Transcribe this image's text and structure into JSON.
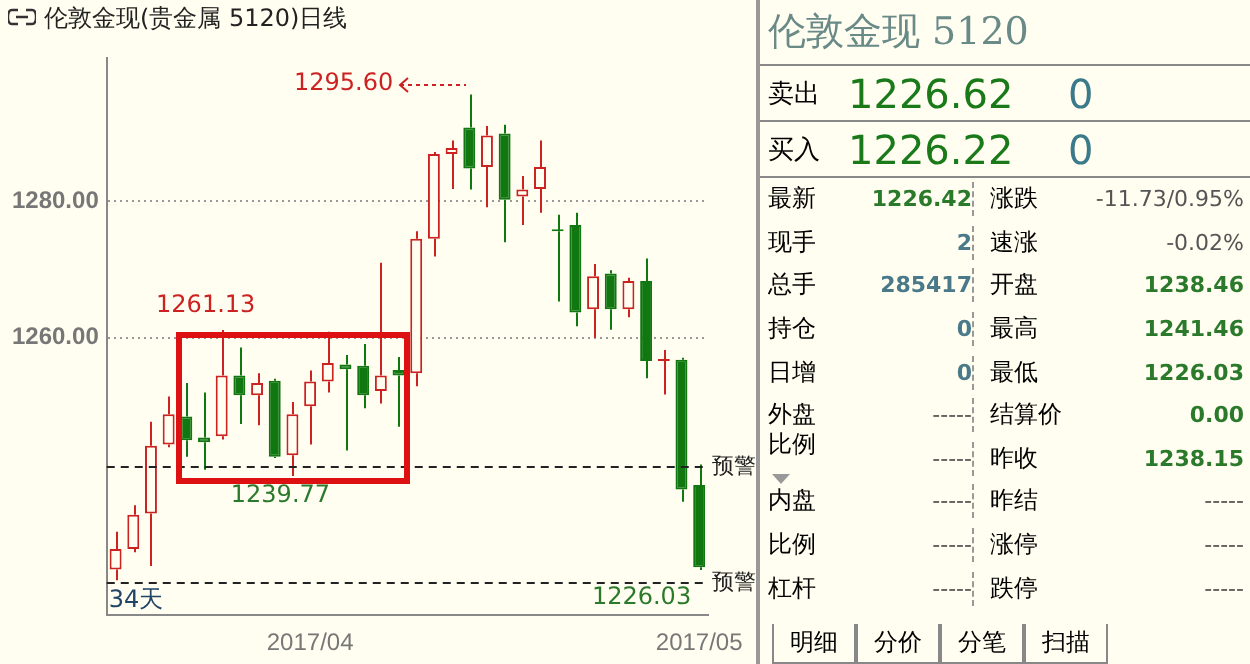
{
  "chart_data": [
    {
      "type": "candlestick",
      "title": "伦敦金现(贵金属 5120)日线",
      "categories": [
        null,
        null,
        null,
        null,
        null,
        null,
        null,
        null,
        null,
        null,
        null,
        "2017/04",
        null,
        null,
        null,
        null,
        null,
        null,
        null,
        null,
        null,
        null,
        null,
        null,
        null,
        null,
        null,
        null,
        null,
        null,
        null,
        null,
        null,
        "2017/05"
      ],
      "ohlc": [
        [
          1226.1,
          1231.6,
          1224.5,
          1229.1
        ],
        [
          1229.1,
          1235.5,
          1228.6,
          1234.1
        ],
        [
          1234.3,
          1247.7,
          1226.6,
          1244.2
        ],
        [
          1244.4,
          1251.4,
          1244.0,
          1248.8
        ],
        [
          1248.5,
          1253.4,
          1242.6,
          1245.0
        ],
        [
          1245.4,
          1252.0,
          1240.7,
          1244.7
        ],
        [
          1245.6,
          1261.13,
          1245.1,
          1254.5
        ],
        [
          1254.5,
          1258.6,
          1247.4,
          1251.6
        ],
        [
          1251.6,
          1254.8,
          1247.2,
          1253.4
        ],
        [
          1253.7,
          1254.0,
          1242.4,
          1242.6
        ],
        [
          1242.8,
          1250.6,
          1239.77,
          1248.8
        ],
        [
          1250.0,
          1255.2,
          1244.4,
          1253.6
        ],
        [
          1253.6,
          1260.9,
          1252.0,
          1256.3
        ],
        [
          1256.1,
          1257.5,
          1243.5,
          1255.4
        ],
        [
          1255.9,
          1259.1,
          1249.7,
          1251.6
        ],
        [
          1252.2,
          1271.0,
          1250.4,
          1254.5
        ],
        [
          1255.3,
          1257.2,
          1247.0,
          1254.5
        ],
        [
          1254.8,
          1275.6,
          1252.9,
          1274.5
        ],
        [
          1274.5,
          1287.2,
          1271.9,
          1286.9
        ],
        [
          1286.9,
          1288.9,
          1281.8,
          1287.8
        ],
        [
          1290.8,
          1295.6,
          1281.7,
          1284.8
        ],
        [
          1285.0,
          1291.0,
          1279.1,
          1289.6
        ],
        [
          1289.9,
          1291.2,
          1274.0,
          1280.2
        ],
        [
          1280.7,
          1283.7,
          1276.5,
          1281.7
        ],
        [
          1281.8,
          1288.9,
          1278.3,
          1285.0
        ],
        [
          1275.8,
          1278.0,
          1265.3,
          1275.6
        ],
        [
          1276.5,
          1278.3,
          1261.7,
          1263.7
        ],
        [
          1264.2,
          1270.8,
          1260.0,
          1269.0
        ],
        [
          1269.4,
          1269.9,
          1261.2,
          1264.2
        ],
        [
          1264.2,
          1268.8,
          1263.0,
          1268.3
        ],
        [
          1268.3,
          1271.6,
          1254.1,
          1256.6
        ],
        [
          1256.6,
          1258.2,
          1251.7,
          1256.9
        ],
        [
          1256.8,
          1257.1,
          1236.0,
          1237.8
        ],
        [
          1238.46,
          1241.46,
          1226.03,
          1226.42
        ]
      ],
      "colors": [
        "#cc2222",
        "#cc2222",
        "#cc2222",
        "#cc2222",
        "#117711",
        "#117711",
        "#cc2222",
        "#117711",
        "#cc2222",
        "#117711",
        "#cc2222",
        "#cc2222",
        "#cc2222",
        "#117711",
        "#117711",
        "#cc2222",
        "#117711",
        "#cc2222",
        "#cc2222",
        "#cc2222",
        "#117711",
        "#cc2222",
        "#117711",
        "#cc2222",
        "#cc2222",
        "#117711",
        "#117711",
        "#cc2222",
        "#117711",
        "#cc2222",
        "#117711",
        "#cc2222",
        "#117711",
        "#117711"
      ],
      "ylim": [
        1219.4,
        1300.9
      ],
      "yticks": [
        {
          "value": 1260,
          "label": "1260.00"
        },
        {
          "value": 1280,
          "label": "1280.00"
        }
      ],
      "grid": "y",
      "legend": false,
      "ref_lines": [
        {
          "axis": "y",
          "value": 1241.2,
          "label": "预警",
          "line_style": "dashed"
        },
        {
          "axis": "y",
          "value": 1224.2,
          "label": "预警",
          "line_style": "dashed"
        }
      ],
      "annotations": [
        "1295.60",
        "1261.13",
        "1239.77",
        "1226.03",
        "34天"
      ]
    },
    {
      "type": "other",
      "title": "伦敦金现 5120",
      "annotations": [
        "卖出",
        "1226.62",
        "0",
        "买入",
        "1226.22",
        "0",
        "最新",
        "1226.42",
        "涨跌",
        "-11.73/0.95%",
        "现手",
        "2",
        "速涨",
        "-0.02%",
        "总手",
        "285417",
        "开盘",
        "1238.46",
        "持仓",
        "0",
        "最高",
        "1241.46",
        "日增",
        "0",
        "最低",
        "1226.03",
        "外盘",
        "-----",
        "结算价",
        "0.00",
        "比例",
        "-----",
        "昨收",
        "1238.15",
        "内盘",
        "-----",
        "昨结",
        "-----",
        "比例",
        "-----",
        "涨停",
        "-----",
        "杠杆",
        "-----",
        "跌停",
        "-----",
        "明细",
        "分价",
        "分笔",
        "扫描"
      ]
    }
  ]
}
